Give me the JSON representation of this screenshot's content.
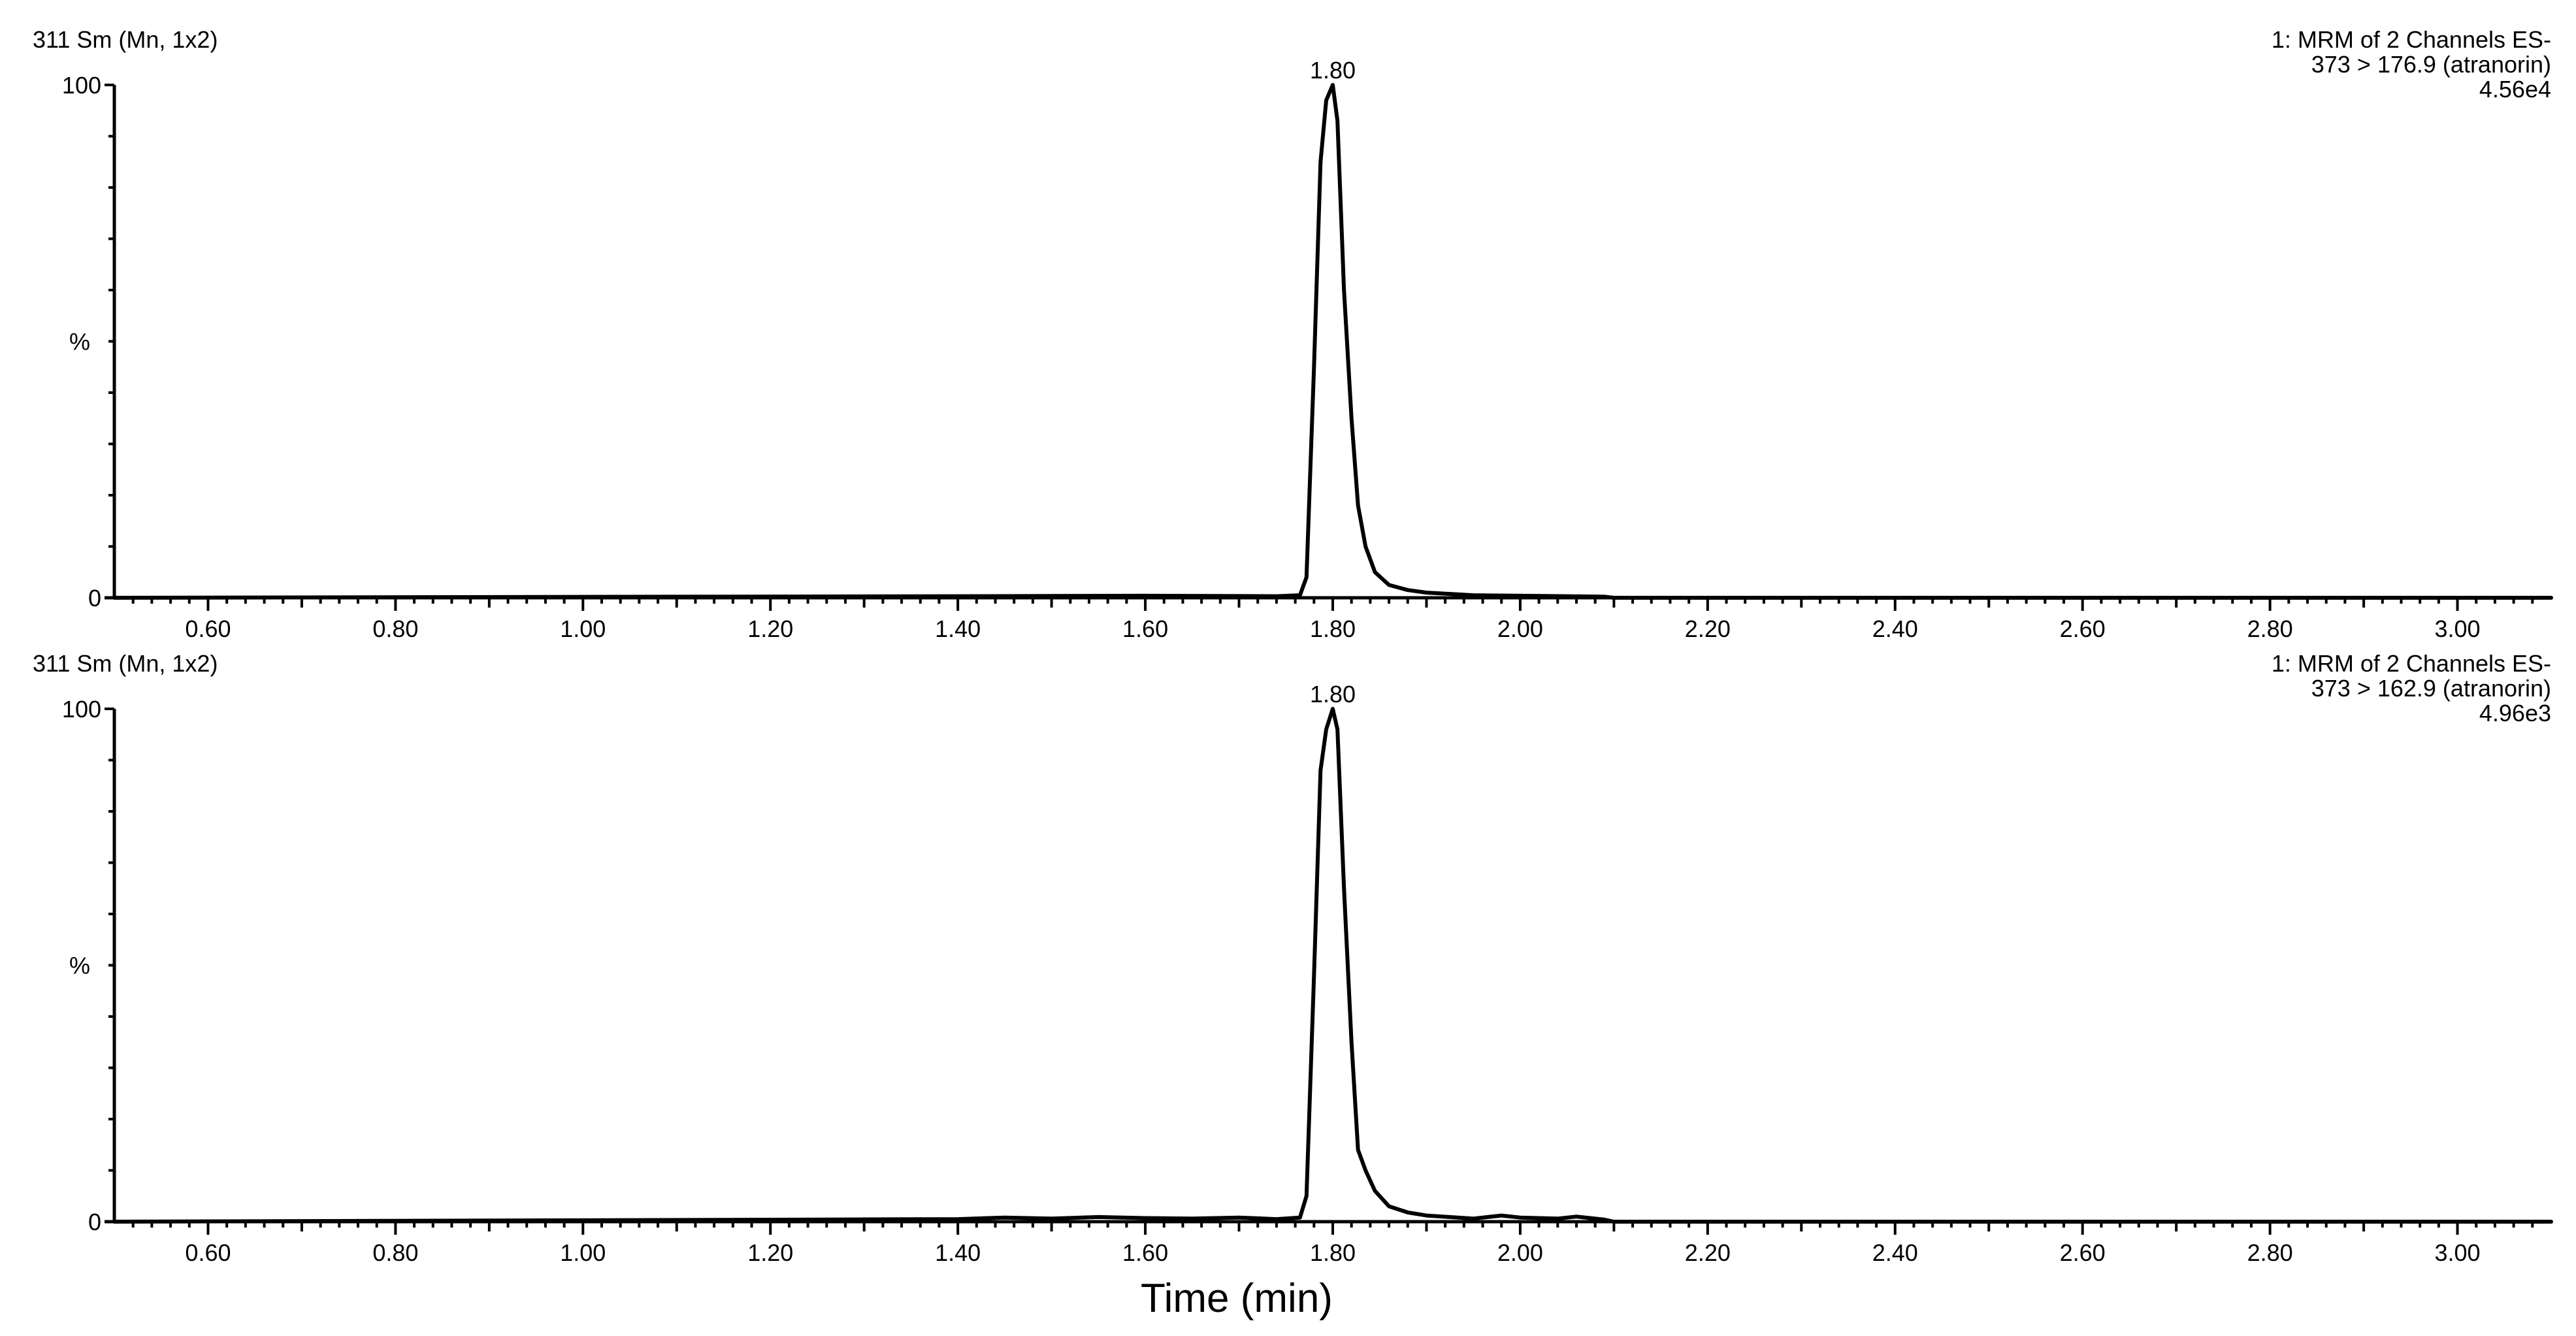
{
  "colors": {
    "trace": "#000000",
    "axis": "#000000",
    "background": "#ffffff"
  },
  "x_axis_title": "Time (min)",
  "chart_data": [
    {
      "type": "line",
      "smoothing_label": "311 Sm (Mn, 1x2)",
      "header_lines": [
        "1: MRM of 2 Channels ES-",
        "373 > 176.9 (atranorin)",
        "4.56e4"
      ],
      "ylabel": "%",
      "ytick_labels": [
        "0",
        "100"
      ],
      "xtick_labels": [
        "0.60",
        "0.80",
        "1.00",
        "1.20",
        "1.40",
        "1.60",
        "1.80",
        "2.00",
        "2.20",
        "2.40",
        "2.60",
        "2.80",
        "3.00"
      ],
      "xlim": [
        0.5,
        3.1
      ],
      "ylim": [
        0,
        100
      ],
      "grid": false,
      "peak_label": "1.80",
      "peak_rt": 1.8,
      "x": [
        0.5,
        1.4,
        1.6,
        1.74,
        1.765,
        1.772,
        1.78,
        1.787,
        1.793,
        1.8,
        1.805,
        1.812,
        1.82,
        1.827,
        1.835,
        1.845,
        1.86,
        1.88,
        1.9,
        1.95,
        2.0,
        2.05,
        2.09,
        2.1,
        3.1
      ],
      "y": [
        0,
        0.3,
        0.4,
        0.3,
        0.5,
        4,
        45,
        85,
        97,
        100,
        93,
        60,
        35,
        18,
        10,
        5,
        2.5,
        1.5,
        1.0,
        0.5,
        0.4,
        0.3,
        0.2,
        0,
        0
      ]
    },
    {
      "type": "line",
      "smoothing_label": "311 Sm (Mn, 1x2)",
      "header_lines": [
        "1: MRM of 2 Channels ES-",
        "373 > 162.9 (atranorin)",
        "4.96e3"
      ],
      "ylabel": "%",
      "ytick_labels": [
        "0",
        "100"
      ],
      "xtick_labels": [
        "0.60",
        "0.80",
        "1.00",
        "1.20",
        "1.40",
        "1.60",
        "1.80",
        "2.00",
        "2.20",
        "2.40",
        "2.60",
        "2.80",
        "3.00"
      ],
      "xlim": [
        0.5,
        3.1
      ],
      "ylim": [
        0,
        100
      ],
      "grid": false,
      "peak_label": "1.80",
      "peak_rt": 1.8,
      "x": [
        0.5,
        1.4,
        1.45,
        1.5,
        1.55,
        1.6,
        1.65,
        1.7,
        1.74,
        1.765,
        1.772,
        1.78,
        1.787,
        1.793,
        1.8,
        1.805,
        1.812,
        1.82,
        1.827,
        1.835,
        1.845,
        1.86,
        1.88,
        1.9,
        1.95,
        1.98,
        2.0,
        2.04,
        2.06,
        2.09,
        2.1,
        3.1
      ],
      "y": [
        0,
        0.5,
        0.8,
        0.6,
        0.9,
        0.7,
        0.6,
        0.8,
        0.5,
        0.8,
        5,
        48,
        88,
        96,
        100,
        96,
        65,
        35,
        14,
        10,
        6,
        3.0,
        1.8,
        1.2,
        0.6,
        1.2,
        0.8,
        0.6,
        1.0,
        0.4,
        0,
        0
      ]
    }
  ]
}
